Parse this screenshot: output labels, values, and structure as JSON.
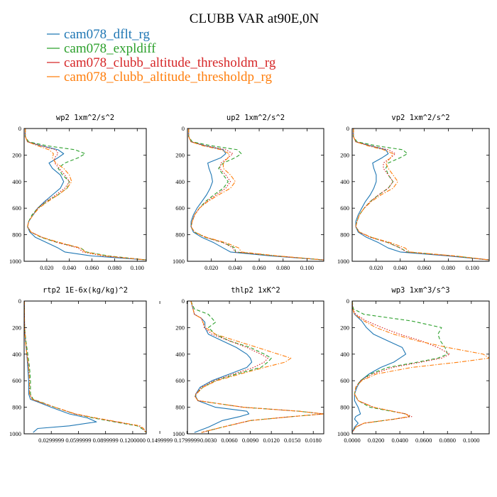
{
  "figure": {
    "title": "CLUBB VAR at90E,0N",
    "legend": [
      {
        "label": "cam078_dflt_rg",
        "color": "#1f77b4",
        "dash": "solid"
      },
      {
        "label": "cam078_expldiff",
        "color": "#2ca02c",
        "dash": "dashed"
      },
      {
        "label": "cam078_clubb_altitude_thresholdm_rg",
        "color": "#d62728",
        "dash": "dotted"
      },
      {
        "label": "cam078_clubb_altitude_thresholdp_rg",
        "color": "#ff7f0e",
        "dash": "dashdot"
      }
    ]
  },
  "chart_data": [
    {
      "type": "line",
      "title": "wp2  1xm^2/s^2",
      "xlim": [
        0,
        0.108
      ],
      "ylim": [
        0,
        1000
      ],
      "y_inverted": true,
      "xticks": [
        "0.020",
        "0.040",
        "0.060",
        "0.080",
        "0.100"
      ],
      "xtick_values": [
        0.02,
        0.04,
        0.06,
        0.08,
        0.1
      ],
      "yticks": [
        "0",
        "200",
        "400",
        "600",
        "800",
        "1000"
      ],
      "y": [
        0,
        60,
        100,
        130,
        160,
        190,
        220,
        260,
        300,
        350,
        400,
        450,
        500,
        550,
        600,
        650,
        700,
        740,
        780,
        820,
        860,
        900,
        930,
        960,
        990
      ],
      "series": [
        {
          "name": "cam078_dflt_rg",
          "values": [
            0.001,
            0.001,
            0.003,
            0.015,
            0.03,
            0.035,
            0.03,
            0.022,
            0.025,
            0.032,
            0.035,
            0.032,
            0.025,
            0.018,
            0.012,
            0.008,
            0.004,
            0.003,
            0.005,
            0.01,
            0.02,
            0.03,
            0.036,
            0.06,
            0.108
          ]
        },
        {
          "name": "cam078_expldiff",
          "values": [
            0.001,
            0.001,
            0.004,
            0.02,
            0.045,
            0.054,
            0.048,
            0.036,
            0.03,
            0.034,
            0.04,
            0.038,
            0.03,
            0.02,
            0.012,
            0.007,
            0.004,
            0.003,
            0.006,
            0.015,
            0.03,
            0.05,
            0.055,
            0.075,
            0.108
          ]
        },
        {
          "name": "cam078_clubb_altitude_thresholdm_rg",
          "values": [
            0.001,
            0.001,
            0.003,
            0.015,
            0.028,
            0.03,
            0.027,
            0.027,
            0.031,
            0.036,
            0.04,
            0.036,
            0.028,
            0.019,
            0.012,
            0.008,
            0.004,
            0.003,
            0.006,
            0.016,
            0.03,
            0.048,
            0.052,
            0.07,
            0.108
          ]
        },
        {
          "name": "cam078_clubb_altitude_thresholdp_rg",
          "values": [
            0.001,
            0.001,
            0.003,
            0.012,
            0.022,
            0.026,
            0.025,
            0.028,
            0.035,
            0.04,
            0.042,
            0.038,
            0.03,
            0.021,
            0.013,
            0.008,
            0.004,
            0.003,
            0.006,
            0.016,
            0.032,
            0.05,
            0.054,
            0.072,
            0.108
          ]
        }
      ]
    },
    {
      "type": "line",
      "title": "up2  1xm^2/s^2",
      "xlim": [
        0,
        0.114
      ],
      "ylim": [
        0,
        1000
      ],
      "y_inverted": true,
      "xticks": [
        "0.020",
        "0.040",
        "0.060",
        "0.080",
        "0.100"
      ],
      "xtick_values": [
        0.02,
        0.04,
        0.06,
        0.08,
        0.1
      ],
      "yticks": [
        "0",
        "200",
        "400",
        "600",
        "800",
        "1000"
      ],
      "y": [
        0,
        60,
        100,
        130,
        160,
        190,
        220,
        260,
        300,
        350,
        400,
        450,
        500,
        550,
        600,
        650,
        700,
        740,
        780,
        820,
        860,
        900,
        930,
        960,
        990
      ],
      "series": [
        {
          "name": "cam078_dflt_rg",
          "values": [
            0.001,
            0.001,
            0.003,
            0.015,
            0.03,
            0.032,
            0.028,
            0.017,
            0.018,
            0.02,
            0.021,
            0.019,
            0.016,
            0.012,
            0.008,
            0.005,
            0.003,
            0.003,
            0.005,
            0.012,
            0.022,
            0.03,
            0.036,
            0.07,
            0.114
          ]
        },
        {
          "name": "cam078_expldiff",
          "values": [
            0.001,
            0.001,
            0.004,
            0.02,
            0.042,
            0.045,
            0.04,
            0.03,
            0.026,
            0.03,
            0.034,
            0.03,
            0.022,
            0.015,
            0.01,
            0.006,
            0.004,
            0.003,
            0.006,
            0.015,
            0.03,
            0.04,
            0.04,
            0.075,
            0.114
          ]
        },
        {
          "name": "cam078_clubb_altitude_thresholdm_rg",
          "values": [
            0.001,
            0.001,
            0.003,
            0.015,
            0.032,
            0.038,
            0.034,
            0.028,
            0.027,
            0.032,
            0.036,
            0.032,
            0.024,
            0.016,
            0.01,
            0.006,
            0.004,
            0.003,
            0.006,
            0.015,
            0.03,
            0.038,
            0.04,
            0.074,
            0.114
          ]
        },
        {
          "name": "cam078_clubb_altitude_thresholdp_rg",
          "values": [
            0.001,
            0.001,
            0.003,
            0.013,
            0.028,
            0.035,
            0.034,
            0.03,
            0.03,
            0.036,
            0.04,
            0.036,
            0.026,
            0.017,
            0.01,
            0.006,
            0.004,
            0.003,
            0.006,
            0.016,
            0.032,
            0.043,
            0.045,
            0.076,
            0.114
          ]
        }
      ]
    },
    {
      "type": "line",
      "title": "vp2  1xm^2/s^2",
      "xlim": [
        0,
        0.114
      ],
      "ylim": [
        0,
        1000
      ],
      "y_inverted": true,
      "xticks": [
        "0.020",
        "0.040",
        "0.060",
        "0.080",
        "0.100"
      ],
      "xtick_values": [
        0.02,
        0.04,
        0.06,
        0.08,
        0.1
      ],
      "yticks": [
        "0",
        "200",
        "400",
        "600",
        "800",
        "1000"
      ],
      "y": [
        0,
        60,
        100,
        130,
        160,
        190,
        220,
        260,
        300,
        350,
        400,
        450,
        500,
        550,
        600,
        650,
        700,
        740,
        780,
        820,
        860,
        900,
        930,
        960,
        990
      ],
      "series": [
        {
          "name": "cam078_dflt_rg",
          "values": [
            0.001,
            0.001,
            0.003,
            0.015,
            0.028,
            0.03,
            0.025,
            0.017,
            0.018,
            0.02,
            0.02,
            0.018,
            0.015,
            0.011,
            0.008,
            0.005,
            0.003,
            0.003,
            0.005,
            0.012,
            0.022,
            0.03,
            0.04,
            0.08,
            0.114
          ]
        },
        {
          "name": "cam078_expldiff",
          "values": [
            0.001,
            0.001,
            0.004,
            0.02,
            0.042,
            0.046,
            0.04,
            0.03,
            0.028,
            0.03,
            0.034,
            0.03,
            0.022,
            0.015,
            0.01,
            0.006,
            0.004,
            0.003,
            0.006,
            0.016,
            0.03,
            0.04,
            0.046,
            0.085,
            0.114
          ]
        },
        {
          "name": "cam078_clubb_altitude_thresholdm_rg",
          "values": [
            0.001,
            0.001,
            0.003,
            0.015,
            0.03,
            0.036,
            0.032,
            0.026,
            0.026,
            0.03,
            0.034,
            0.03,
            0.022,
            0.015,
            0.01,
            0.006,
            0.004,
            0.003,
            0.006,
            0.015,
            0.03,
            0.04,
            0.045,
            0.083,
            0.114
          ]
        },
        {
          "name": "cam078_clubb_altitude_thresholdp_rg",
          "values": [
            0.001,
            0.001,
            0.003,
            0.013,
            0.026,
            0.034,
            0.032,
            0.028,
            0.03,
            0.034,
            0.038,
            0.034,
            0.024,
            0.016,
            0.01,
            0.006,
            0.004,
            0.003,
            0.006,
            0.016,
            0.032,
            0.044,
            0.048,
            0.086,
            0.114
          ]
        }
      ]
    },
    {
      "type": "line",
      "title": "rtp2  1E-6x(kg/kg)^2",
      "xlim": [
        0,
        0.135
      ],
      "ylim": [
        0,
        1000
      ],
      "y_inverted": true,
      "xticks": [
        "0.0299999",
        "0.0599999",
        "0.0899999",
        "0.1200000",
        "0.1499999",
        "0.1799999"
      ],
      "xtick_values": [
        0.0299999,
        0.0599999,
        0.0899999,
        0.12,
        0.1499999,
        0.1799999
      ],
      "yticks": [
        "0",
        "200",
        "400",
        "600",
        "800",
        "1000"
      ],
      "y": [
        0,
        100,
        200,
        300,
        400,
        500,
        600,
        700,
        740,
        760,
        800,
        850,
        880,
        910,
        940,
        960,
        990
      ],
      "series": [
        {
          "name": "cam078_dflt_rg",
          "values": [
            0.0003,
            0.0003,
            0.0005,
            0.0015,
            0.003,
            0.004,
            0.005,
            0.005,
            0.007,
            0.015,
            0.03,
            0.05,
            0.07,
            0.08,
            0.05,
            0.015,
            0.01
          ]
        },
        {
          "name": "cam078_expldiff",
          "values": [
            0.0003,
            0.0003,
            0.0005,
            0.002,
            0.004,
            0.006,
            0.007,
            0.007,
            0.01,
            0.018,
            0.034,
            0.056,
            0.076,
            0.1,
            0.125,
            0.13,
            0.135
          ]
        },
        {
          "name": "cam078_clubb_altitude_thresholdm_rg",
          "values": [
            0.0003,
            0.0003,
            0.0005,
            0.0015,
            0.003,
            0.005,
            0.006,
            0.006,
            0.009,
            0.017,
            0.034,
            0.056,
            0.078,
            0.102,
            0.127,
            0.131,
            0.135
          ]
        },
        {
          "name": "cam078_clubb_altitude_thresholdp_rg",
          "values": [
            0.0003,
            0.0003,
            0.0005,
            0.0015,
            0.003,
            0.005,
            0.006,
            0.006,
            0.009,
            0.017,
            0.034,
            0.057,
            0.079,
            0.104,
            0.128,
            0.132,
            0.135
          ]
        }
      ]
    },
    {
      "type": "line",
      "title": "thlp2  1xK^2",
      "xlim": [
        0,
        0.0195
      ],
      "ylim": [
        0,
        1000
      ],
      "y_inverted": true,
      "xticks": [
        "0.0030",
        "0.0060",
        "0.0090",
        "0.0120",
        "0.0150",
        "0.0180"
      ],
      "xtick_values": [
        0.003,
        0.006,
        0.009,
        0.012,
        0.015,
        0.018
      ],
      "yticks": [
        "0",
        "200",
        "400",
        "600",
        "800",
        "1000"
      ],
      "y": [
        0,
        60,
        100,
        130,
        160,
        200,
        250,
        300,
        350,
        400,
        430,
        460,
        500,
        550,
        600,
        650,
        700,
        720,
        750,
        800,
        830,
        850,
        870,
        900,
        950,
        990
      ],
      "series": [
        {
          "name": "cam078_dflt_rg",
          "values": [
            0.0005,
            0.0008,
            0.001,
            0.002,
            0.0025,
            0.0025,
            0.003,
            0.005,
            0.007,
            0.0085,
            0.009,
            0.0092,
            0.0085,
            0.006,
            0.0035,
            0.0018,
            0.0012,
            0.0012,
            0.0015,
            0.004,
            0.0085,
            0.0088,
            0.0075,
            0.005,
            0.003,
            0.001
          ]
        },
        {
          "name": "cam078_expldiff",
          "values": [
            0.0005,
            0.001,
            0.003,
            0.0035,
            0.004,
            0.003,
            0.004,
            0.006,
            0.009,
            0.011,
            0.012,
            0.0115,
            0.0105,
            0.007,
            0.004,
            0.0022,
            0.0012,
            0.0011,
            0.0015,
            0.008,
            0.016,
            0.0195,
            0.015,
            0.009,
            0.005,
            0.002
          ]
        },
        {
          "name": "cam078_clubb_altitude_thresholdm_rg",
          "values": [
            0.0005,
            0.0008,
            0.001,
            0.002,
            0.0022,
            0.0024,
            0.0035,
            0.006,
            0.0085,
            0.0105,
            0.0115,
            0.011,
            0.0095,
            0.0065,
            0.0038,
            0.002,
            0.0012,
            0.0011,
            0.0015,
            0.008,
            0.016,
            0.0195,
            0.015,
            0.009,
            0.005,
            0.002
          ]
        },
        {
          "name": "cam078_clubb_altitude_thresholdp_rg",
          "values": [
            0.0005,
            0.0008,
            0.001,
            0.002,
            0.0022,
            0.0026,
            0.004,
            0.007,
            0.01,
            0.013,
            0.0148,
            0.014,
            0.011,
            0.0075,
            0.0042,
            0.0022,
            0.0013,
            0.0011,
            0.0015,
            0.008,
            0.016,
            0.0195,
            0.015,
            0.009,
            0.005,
            0.002
          ]
        }
      ]
    },
    {
      "type": "line",
      "title": "wp3  1xm^3/s^3",
      "xlim": [
        0,
        0.115
      ],
      "ylim": [
        0,
        1000
      ],
      "y_inverted": true,
      "xticks": [
        "0.0000",
        "0.0200",
        "0.0400",
        "0.0600",
        "0.0800",
        "0.1000"
      ],
      "xtick_values": [
        0.0,
        0.02,
        0.04,
        0.06,
        0.08,
        0.1
      ],
      "yticks": [
        "0",
        "200",
        "400",
        "600",
        "800",
        "1000"
      ],
      "y": [
        0,
        60,
        100,
        150,
        200,
        250,
        300,
        350,
        400,
        430,
        460,
        500,
        550,
        600,
        650,
        700,
        750,
        800,
        850,
        870,
        890,
        920,
        950,
        990
      ],
      "series": [
        {
          "name": "cam078_dflt_rg",
          "values": [
            0.0,
            0.0005,
            0.002,
            0.008,
            0.012,
            0.018,
            0.03,
            0.042,
            0.045,
            0.04,
            0.035,
            0.024,
            0.014,
            0.007,
            0.004,
            0.002,
            0.002,
            0.005,
            0.007,
            0.003,
            0.002,
            0.005,
            0.002,
            0.0
          ]
        },
        {
          "name": "cam078_expldiff",
          "values": [
            0.0,
            0.001,
            0.01,
            0.05,
            0.075,
            0.072,
            0.074,
            0.078,
            0.08,
            0.072,
            0.055,
            0.03,
            0.015,
            0.007,
            0.003,
            0.002,
            0.005,
            0.015,
            0.045,
            0.048,
            0.035,
            0.01,
            0.003,
            0.0
          ]
        },
        {
          "name": "cam078_clubb_altitude_thresholdm_rg",
          "values": [
            0.0,
            0.0005,
            0.003,
            0.012,
            0.025,
            0.04,
            0.058,
            0.072,
            0.082,
            0.075,
            0.058,
            0.034,
            0.017,
            0.007,
            0.003,
            0.002,
            0.005,
            0.018,
            0.045,
            0.05,
            0.035,
            0.01,
            0.003,
            0.0
          ]
        },
        {
          "name": "cam078_clubb_altitude_thresholdp_rg",
          "values": [
            0.0,
            0.0005,
            0.002,
            0.01,
            0.02,
            0.035,
            0.055,
            0.08,
            0.11,
            0.115,
            0.09,
            0.05,
            0.02,
            0.008,
            0.003,
            0.002,
            0.005,
            0.018,
            0.045,
            0.048,
            0.035,
            0.01,
            0.003,
            0.0
          ]
        }
      ]
    }
  ]
}
